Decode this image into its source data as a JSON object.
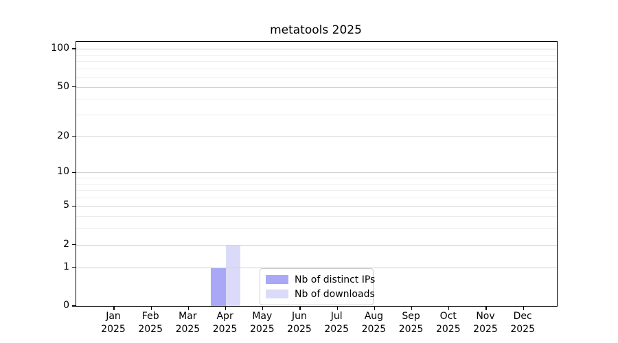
{
  "title": "metatools 2025",
  "chart_data": {
    "type": "bar",
    "title": "metatools 2025",
    "xlabel": "",
    "ylabel": "",
    "categories": [
      "Jan 2025",
      "Feb 2025",
      "Mar 2025",
      "Apr 2025",
      "May 2025",
      "Jun 2025",
      "Jul 2025",
      "Aug 2025",
      "Sep 2025",
      "Oct 2025",
      "Nov 2025",
      "Dec 2025"
    ],
    "series": [
      {
        "name": "Nb of distinct IPs",
        "color": "#a8a8f6",
        "values": [
          0,
          0,
          0,
          1,
          0,
          0,
          0,
          0,
          0,
          0,
          0,
          0
        ]
      },
      {
        "name": "Nb of downloads",
        "color": "#dbdbf9",
        "values": [
          0,
          0,
          0,
          2,
          0,
          0,
          0,
          0,
          0,
          0,
          0,
          0
        ]
      }
    ],
    "y_scale": "log1p",
    "y_major_ticks": [
      0,
      1,
      2,
      5,
      10,
      20,
      50,
      100
    ],
    "y_minor_ticks": [
      3,
      4,
      6,
      7,
      8,
      9,
      30,
      40,
      60,
      70,
      80,
      90
    ],
    "ylim": [
      0,
      113
    ],
    "grid": "horizontal",
    "legend_position": "lower center"
  },
  "colors": {
    "major_grid": "#d2d2d2",
    "minor_grid": "#ededed",
    "axis": "#000000",
    "legend_border": "#cccccc",
    "background": "#ffffff"
  }
}
